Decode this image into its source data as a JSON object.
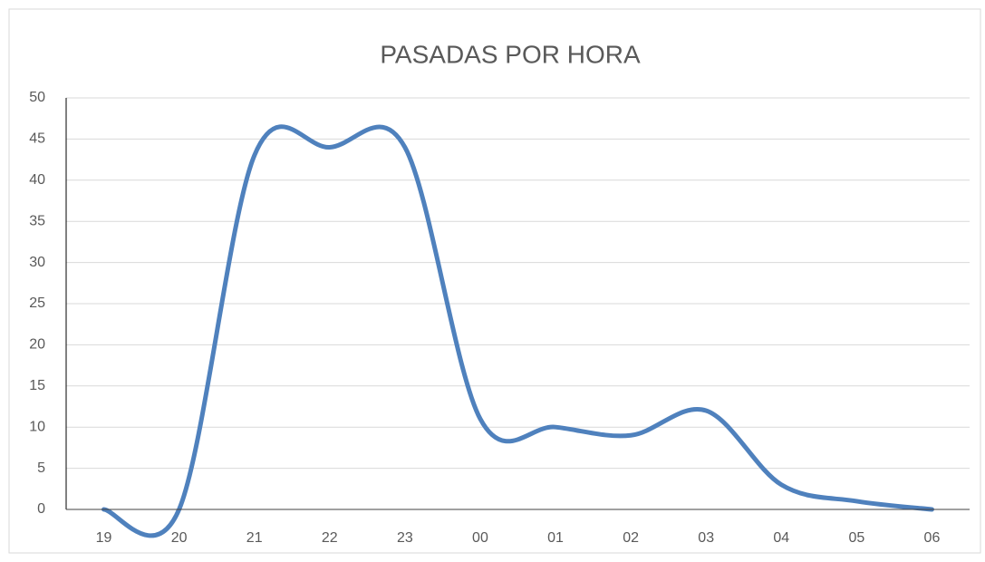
{
  "chart_data": {
    "type": "line",
    "title": "PASADAS POR HORA",
    "categories": [
      "19",
      "20",
      "21",
      "22",
      "23",
      "00",
      "01",
      "02",
      "03",
      "04",
      "05",
      "06"
    ],
    "series": [
      {
        "name": "Pasadas",
        "color": "#4f81bd",
        "values": [
          0,
          0,
          43,
          44,
          44,
          11,
          10,
          9,
          12,
          3,
          1,
          0
        ]
      }
    ],
    "ylim": [
      0,
      50
    ],
    "yticks": [
      0,
      5,
      10,
      15,
      20,
      25,
      30,
      35,
      40,
      45,
      50
    ],
    "grid": true,
    "smooth": true
  }
}
